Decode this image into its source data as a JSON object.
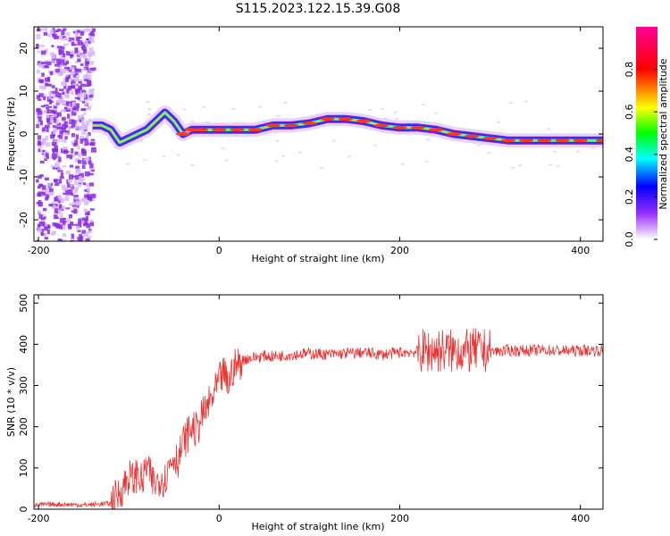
{
  "title": "S115.2023.122.15.39.G08",
  "chart_data": [
    {
      "type": "heatmap",
      "xlabel": "Height of straight line (km)",
      "ylabel": "Frequency (Hz)",
      "xlim": [
        -205,
        425
      ],
      "ylim": [
        -25,
        25
      ],
      "xticks": [
        -200,
        0,
        200,
        400
      ],
      "yticks": [
        -20,
        -10,
        0,
        10,
        20
      ],
      "colorbar": {
        "label": "Normalized spectral amplitude",
        "range": [
          0,
          1
        ],
        "ticks": [
          "0.0",
          "0.2",
          "0.4",
          "0.6",
          "0.8"
        ],
        "colors": [
          "#ffffff",
          "#8a2be2",
          "#0000ff",
          "#00ffff",
          "#00ff00",
          "#ffff00",
          "#ff0000",
          "#ff00aa"
        ]
      },
      "ridge": {
        "x": [
          -140,
          -130,
          -120,
          -110,
          -100,
          -90,
          -80,
          -70,
          -60,
          -50,
          -40,
          -30,
          -20,
          0,
          20,
          40,
          60,
          80,
          100,
          120,
          140,
          160,
          180,
          200,
          220,
          240,
          260,
          280,
          300,
          320,
          340,
          360,
          380,
          400,
          425
        ],
        "y": [
          2,
          2,
          1,
          -2,
          -1,
          0,
          1,
          3,
          5,
          3,
          0,
          1,
          1,
          1,
          1,
          1,
          2,
          2,
          2.5,
          3.5,
          3.5,
          3,
          2,
          1.5,
          1.5,
          1,
          0,
          -0.5,
          -1,
          -1.5,
          -1.5,
          -1.5,
          -1.5,
          -1.5,
          -1.5
        ]
      }
    },
    {
      "type": "line",
      "xlabel": "Height of straight line (km)",
      "ylabel": "SNR (10 * v/v)",
      "xlim": [
        -205,
        425
      ],
      "ylim": [
        0,
        520
      ],
      "xticks": [
        -200,
        0,
        200,
        400
      ],
      "yticks": [
        0,
        100,
        200,
        300,
        400,
        500
      ],
      "color": "#ee3333",
      "series": [
        {
          "x": [
            -205,
            -180,
            -150,
            -120,
            -110,
            -100,
            -95,
            -90,
            -85,
            -80,
            -75,
            -70,
            -65,
            -60,
            -55,
            -50,
            -45,
            -40,
            -35,
            -30,
            -25,
            -20,
            -15,
            -10,
            -5,
            0,
            5,
            10,
            15,
            20,
            25,
            30,
            40,
            50,
            60,
            80,
            100,
            120,
            140,
            160,
            180,
            200,
            220,
            240,
            250,
            260,
            265,
            270,
            280,
            300,
            320,
            340,
            360,
            380,
            400,
            425
          ],
          "y": [
            10,
            12,
            10,
            14,
            40,
            80,
            70,
            90,
            60,
            110,
            70,
            60,
            80,
            70,
            110,
            130,
            120,
            160,
            180,
            200,
            190,
            220,
            240,
            260,
            280,
            310,
            330,
            300,
            340,
            350,
            360,
            365,
            368,
            372,
            370,
            375,
            378,
            375,
            378,
            380,
            375,
            380,
            382,
            385,
            385,
            382,
            390,
            380,
            385,
            382,
            385,
            385,
            386,
            384,
            385,
            385
          ]
        }
      ]
    }
  ]
}
